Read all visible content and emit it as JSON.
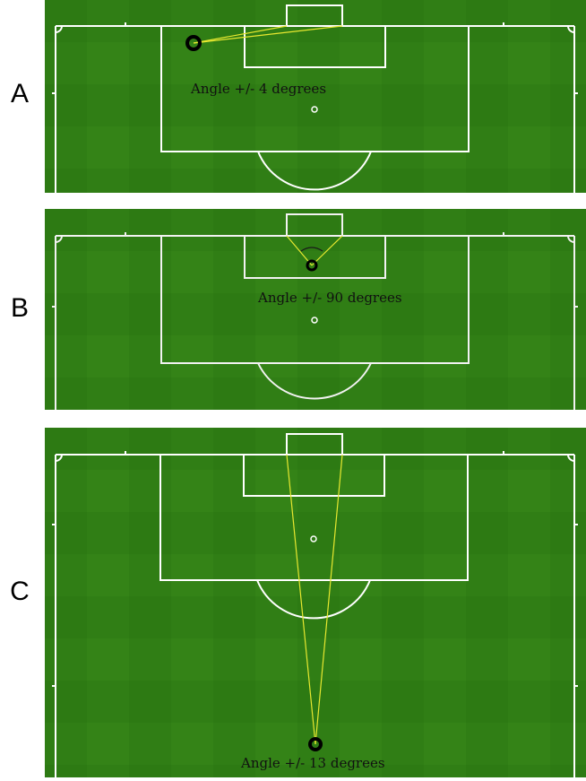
{
  "panels": [
    {
      "id": "a",
      "label": "A",
      "caption": "Angle +/- 4 degrees",
      "shot_angle_degrees": 4
    },
    {
      "id": "b",
      "label": "B",
      "caption": "Angle +/- 90 degrees",
      "shot_angle_degrees": 90
    },
    {
      "id": "c",
      "label": "C",
      "caption": "Angle +/- 13 degrees",
      "shot_angle_degrees": 13
    }
  ],
  "colors": {
    "grass_dark": "#2d7a13",
    "grass_light": "#3b8a1c",
    "lines": "#ffffff",
    "angle_lines": "#e8e830",
    "ball_marker": "#000000"
  }
}
